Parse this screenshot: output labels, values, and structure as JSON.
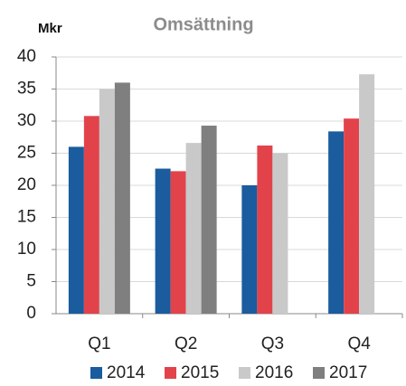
{
  "chart_data": {
    "type": "bar",
    "title": "Omsättning",
    "y_label": "Mkr",
    "categories": [
      "Q1",
      "Q2",
      "Q3",
      "Q4"
    ],
    "series": [
      {
        "name": "2014",
        "color": "#1a5c9e",
        "values": [
          26,
          22.6,
          20,
          28.4
        ]
      },
      {
        "name": "2015",
        "color": "#e2434b",
        "values": [
          30.8,
          22.2,
          26.2,
          30.4
        ]
      },
      {
        "name": "2016",
        "color": "#c9c9c9",
        "values": [
          35,
          26.6,
          25,
          37.3
        ]
      },
      {
        "name": "2017",
        "color": "#7f7f7f",
        "values": [
          36,
          29.3,
          null,
          null
        ]
      }
    ],
    "ylim": [
      0,
      40
    ],
    "yticks": [
      0,
      5,
      10,
      15,
      20,
      25,
      30,
      35,
      40
    ],
    "grid": true,
    "legend": "bottom"
  }
}
